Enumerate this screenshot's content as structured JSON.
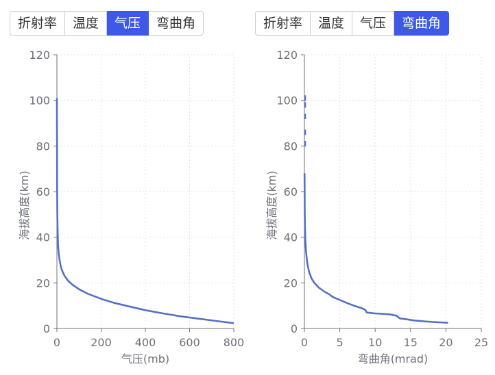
{
  "left_panel": {
    "tabs": [
      {
        "label": "折射率",
        "active": false
      },
      {
        "label": "温度",
        "active": false
      },
      {
        "label": "气压",
        "active": true
      },
      {
        "label": "弯曲角",
        "active": false
      }
    ]
  },
  "right_panel": {
    "tabs": [
      {
        "label": "折射率",
        "active": false
      },
      {
        "label": "温度",
        "active": false
      },
      {
        "label": "气压",
        "active": false
      },
      {
        "label": "弯曲角",
        "active": true
      }
    ]
  },
  "colors": {
    "accent": "#3d59e6",
    "series_line": "#5470c6",
    "grid": "#e0e0e0",
    "axis": "#6e7079"
  },
  "chart_data": [
    {
      "type": "line",
      "title": "",
      "xlabel": "气压(mb)",
      "ylabel": "海拔高度(km)",
      "xlim": [
        0,
        800
      ],
      "ylim": [
        0,
        120
      ],
      "x_ticks": [
        "0",
        "200",
        "400",
        "600",
        "800"
      ],
      "y_ticks": [
        "0",
        "20",
        "40",
        "60",
        "80",
        "100",
        "120"
      ],
      "grid": true,
      "series": [
        {
          "x": [
            0,
            0.5,
            1,
            2,
            3,
            5,
            8,
            12,
            18,
            25,
            35,
            50,
            70,
            100,
            140,
            200,
            260,
            320,
            400,
            480,
            560,
            640,
            720,
            800
          ],
          "y": [
            101,
            80,
            62,
            50,
            44,
            37,
            33,
            30,
            27,
            25,
            23,
            21,
            19.2,
            17.2,
            15.2,
            13,
            11.2,
            9.8,
            8,
            6.6,
            5.3,
            4.3,
            3.3,
            2.3
          ]
        }
      ]
    },
    {
      "type": "line",
      "title": "",
      "xlabel": "弯曲角(mrad)",
      "ylabel": "海拔高度(km)",
      "xlim": [
        0,
        25
      ],
      "ylim": [
        0,
        120
      ],
      "x_ticks": [
        "0",
        "5",
        "10",
        "15",
        "20",
        "25"
      ],
      "y_ticks": [
        "0",
        "20",
        "40",
        "60",
        "80",
        "100",
        "120"
      ],
      "grid": true,
      "series": [
        {
          "x": [
            0.02,
            0.05,
            0.08,
            0.12,
            0.18,
            0.25,
            0.35,
            0.5,
            0.7,
            1.0,
            1.4,
            2.0,
            2.8,
            3.5,
            4.0,
            5.0,
            6.0,
            7.0,
            8.0,
            8.6,
            8.8,
            10.0,
            12.0,
            13.0,
            13.5,
            14.5,
            15.5,
            17.0,
            19.0,
            20.3
          ],
          "y": [
            68,
            52,
            45,
            40,
            36,
            33,
            30,
            27,
            24.5,
            22,
            20,
            18,
            16.2,
            15,
            13.8,
            12.5,
            11.2,
            10,
            9,
            8.2,
            7,
            6.6,
            6.2,
            5.6,
            4.4,
            4.0,
            3.5,
            3.1,
            2.7,
            2.5
          ]
        }
      ],
      "sparse_points_top": {
        "x": [
          0.1,
          0.1,
          0.1,
          0.1,
          0.1
        ],
        "y": [
          101,
          98,
          93,
          86,
          81
        ]
      }
    }
  ]
}
